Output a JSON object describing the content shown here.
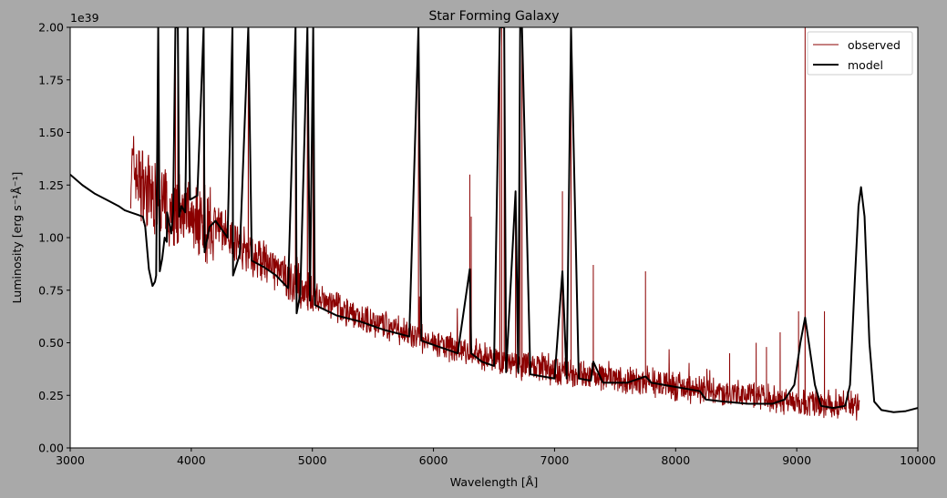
{
  "chart_data": {
    "type": "line",
    "title": "Star Forming Galaxy",
    "xlabel": "Wavelength [Å]",
    "ylabel": "Luminosity [erg s⁻¹Å⁻¹]",
    "y_offset_text": "1e39",
    "xlim": [
      3000,
      10000
    ],
    "ylim": [
      0,
      2.0
    ],
    "xticks": [
      3000,
      4000,
      5000,
      6000,
      7000,
      8000,
      9000,
      10000
    ],
    "yticks": [
      0.0,
      0.25,
      0.5,
      0.75,
      1.0,
      1.25,
      1.5,
      1.75,
      2.0
    ],
    "ytick_labels": [
      "0.00",
      "0.25",
      "0.50",
      "0.75",
      "1.00",
      "1.25",
      "1.50",
      "1.75",
      "2.00"
    ],
    "grid": false,
    "legend_placement": "top-right",
    "series": [
      {
        "name": "observed",
        "color": "#8b0000",
        "line_width": 1,
        "continuum": [
          [
            3500,
            1.35
          ],
          [
            3600,
            1.25
          ],
          [
            3700,
            1.18
          ],
          [
            3800,
            1.14
          ],
          [
            3900,
            1.12
          ],
          [
            4000,
            1.12
          ],
          [
            4100,
            1.08
          ],
          [
            4200,
            1.05
          ],
          [
            4300,
            1.02
          ],
          [
            4400,
            0.97
          ],
          [
            4500,
            0.92
          ],
          [
            4600,
            0.88
          ],
          [
            4700,
            0.84
          ],
          [
            4800,
            0.8
          ],
          [
            4900,
            0.76
          ],
          [
            5000,
            0.72
          ],
          [
            5200,
            0.67
          ],
          [
            5400,
            0.62
          ],
          [
            5600,
            0.58
          ],
          [
            5800,
            0.54
          ],
          [
            6000,
            0.5
          ],
          [
            6200,
            0.47
          ],
          [
            6400,
            0.44
          ],
          [
            6600,
            0.41
          ],
          [
            6800,
            0.39
          ],
          [
            7000,
            0.37
          ],
          [
            7200,
            0.35
          ],
          [
            7400,
            0.34
          ],
          [
            7600,
            0.33
          ],
          [
            7800,
            0.31
          ],
          [
            8000,
            0.29
          ],
          [
            8200,
            0.28
          ],
          [
            8400,
            0.26
          ],
          [
            8600,
            0.25
          ],
          [
            8800,
            0.23
          ],
          [
            9000,
            0.22
          ],
          [
            9200,
            0.21
          ],
          [
            9400,
            0.21
          ],
          [
            9520,
            0.21
          ]
        ],
        "emission_lines": [
          [
            3727,
            2.0
          ],
          [
            3869,
            2.0
          ],
          [
            3889,
            2.0
          ],
          [
            4102,
            2.0
          ],
          [
            4340,
            2.0
          ],
          [
            4471,
            2.0
          ],
          [
            4861,
            2.0
          ],
          [
            4959,
            2.0
          ],
          [
            5007,
            2.0
          ],
          [
            5876,
            2.0
          ],
          [
            6300,
            1.3
          ],
          [
            6312,
            1.1
          ],
          [
            6548,
            2.0
          ],
          [
            6563,
            2.0
          ],
          [
            6584,
            2.0
          ],
          [
            6678,
            1.2
          ],
          [
            6716,
            2.0
          ],
          [
            6731,
            2.0
          ],
          [
            7065,
            1.22
          ],
          [
            7136,
            2.0
          ],
          [
            7320,
            0.87
          ],
          [
            7751,
            0.84
          ],
          [
            8446,
            0.45
          ],
          [
            8665,
            0.5
          ],
          [
            8750,
            0.48
          ],
          [
            8863,
            0.55
          ],
          [
            9015,
            0.65
          ],
          [
            9069,
            2.0
          ],
          [
            9229,
            0.65
          ]
        ]
      },
      {
        "name": "model",
        "color": "#000000",
        "line_width": 2,
        "points": [
          [
            3000,
            1.3
          ],
          [
            3100,
            1.25
          ],
          [
            3200,
            1.21
          ],
          [
            3300,
            1.18
          ],
          [
            3400,
            1.15
          ],
          [
            3450,
            1.13
          ],
          [
            3500,
            1.12
          ],
          [
            3550,
            1.11
          ],
          [
            3600,
            1.1
          ],
          [
            3620,
            1.05
          ],
          [
            3650,
            0.85
          ],
          [
            3680,
            0.77
          ],
          [
            3700,
            0.79
          ],
          [
            3710,
            0.82
          ],
          [
            3727,
            2.0
          ],
          [
            3740,
            0.84
          ],
          [
            3760,
            0.9
          ],
          [
            3780,
            1.0
          ],
          [
            3798,
            0.98
          ],
          [
            3800,
            1.12
          ],
          [
            3835,
            1.02
          ],
          [
            3850,
            1.12
          ],
          [
            3869,
            2.0
          ],
          [
            3889,
            2.0
          ],
          [
            3900,
            1.1
          ],
          [
            3920,
            1.15
          ],
          [
            3950,
            1.12
          ],
          [
            3970,
            2.0
          ],
          [
            3990,
            1.18
          ],
          [
            4050,
            1.2
          ],
          [
            4102,
            2.0
          ],
          [
            4110,
            0.93
          ],
          [
            4150,
            1.05
          ],
          [
            4200,
            1.08
          ],
          [
            4300,
            1.0
          ],
          [
            4340,
            2.0
          ],
          [
            4345,
            0.82
          ],
          [
            4400,
            0.92
          ],
          [
            4471,
            2.0
          ],
          [
            4500,
            0.89
          ],
          [
            4600,
            0.86
          ],
          [
            4700,
            0.82
          ],
          [
            4800,
            0.76
          ],
          [
            4861,
            2.0
          ],
          [
            4870,
            0.64
          ],
          [
            4900,
            0.73
          ],
          [
            4959,
            2.0
          ],
          [
            4980,
            0.7
          ],
          [
            5007,
            2.0
          ],
          [
            5020,
            0.68
          ],
          [
            5200,
            0.63
          ],
          [
            5400,
            0.6
          ],
          [
            5600,
            0.56
          ],
          [
            5800,
            0.53
          ],
          [
            5876,
            2.0
          ],
          [
            5900,
            0.51
          ],
          [
            6000,
            0.49
          ],
          [
            6200,
            0.45
          ],
          [
            6300,
            0.85
          ],
          [
            6312,
            0.45
          ],
          [
            6400,
            0.41
          ],
          [
            6500,
            0.39
          ],
          [
            6548,
            2.0
          ],
          [
            6563,
            2.0
          ],
          [
            6584,
            2.0
          ],
          [
            6600,
            0.36
          ],
          [
            6678,
            1.22
          ],
          [
            6700,
            0.36
          ],
          [
            6716,
            2.0
          ],
          [
            6731,
            2.0
          ],
          [
            6800,
            0.35
          ],
          [
            7000,
            0.33
          ],
          [
            7065,
            0.84
          ],
          [
            7100,
            0.33
          ],
          [
            7136,
            2.0
          ],
          [
            7200,
            0.33
          ],
          [
            7300,
            0.32
          ],
          [
            7320,
            0.41
          ],
          [
            7400,
            0.31
          ],
          [
            7600,
            0.31
          ],
          [
            7751,
            0.34
          ],
          [
            7800,
            0.31
          ],
          [
            8000,
            0.29
          ],
          [
            8200,
            0.27
          ],
          [
            8250,
            0.23
          ],
          [
            8400,
            0.22
          ],
          [
            8600,
            0.21
          ],
          [
            8800,
            0.21
          ],
          [
            8900,
            0.23
          ],
          [
            8980,
            0.3
          ],
          [
            9030,
            0.5
          ],
          [
            9069,
            0.62
          ],
          [
            9100,
            0.5
          ],
          [
            9150,
            0.3
          ],
          [
            9200,
            0.2
          ],
          [
            9300,
            0.19
          ],
          [
            9400,
            0.2
          ],
          [
            9440,
            0.3
          ],
          [
            9480,
            0.8
          ],
          [
            9510,
            1.15
          ],
          [
            9531,
            1.24
          ],
          [
            9560,
            1.1
          ],
          [
            9600,
            0.5
          ],
          [
            9640,
            0.22
          ],
          [
            9700,
            0.18
          ],
          [
            9800,
            0.17
          ],
          [
            9900,
            0.175
          ],
          [
            10000,
            0.19
          ]
        ]
      }
    ]
  }
}
